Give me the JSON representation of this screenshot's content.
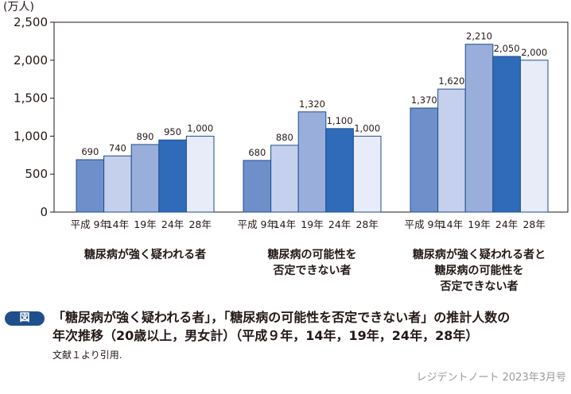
{
  "chart_data": {
    "type": "bar",
    "y_unit_label": "(万人)",
    "ylim": [
      0,
      2500
    ],
    "yticks": [
      0,
      500,
      1000,
      1500,
      2000,
      2500
    ],
    "ytick_labels": [
      "0",
      "500",
      "1,000",
      "1,500",
      "2,000",
      "2,500"
    ],
    "groups": [
      {
        "name_lines": [
          "糖尿病が強く疑われる者"
        ],
        "bars": [
          {
            "x_label": "平成 9年",
            "value": 690,
            "value_label": "690"
          },
          {
            "x_label": "14年",
            "value": 740,
            "value_label": "740"
          },
          {
            "x_label": "19年",
            "value": 890,
            "value_label": "890"
          },
          {
            "x_label": "24年",
            "value": 950,
            "value_label": "950"
          },
          {
            "x_label": "28年",
            "value": 1000,
            "value_label": "1,000"
          }
        ]
      },
      {
        "name_lines": [
          "糖尿病の可能性を",
          "否定できない者"
        ],
        "bars": [
          {
            "x_label": "平成 9年",
            "value": 680,
            "value_label": "680"
          },
          {
            "x_label": "14年",
            "value": 880,
            "value_label": "880"
          },
          {
            "x_label": "19年",
            "value": 1320,
            "value_label": "1,320"
          },
          {
            "x_label": "24年",
            "value": 1100,
            "value_label": "1,100"
          },
          {
            "x_label": "28年",
            "value": 1000,
            "value_label": "1,000"
          }
        ]
      },
      {
        "name_lines": [
          "糖尿病が強く疑われる者と",
          "糖尿病の可能性を",
          "否定できない者"
        ],
        "bars": [
          {
            "x_label": "平成 9年",
            "value": 1370,
            "value_label": "1,370"
          },
          {
            "x_label": "14年",
            "value": 1620,
            "value_label": "1,620"
          },
          {
            "x_label": "19年",
            "value": 2210,
            "value_label": "2,210"
          },
          {
            "x_label": "24年",
            "value": 2050,
            "value_label": "2,050"
          },
          {
            "x_label": "28年",
            "value": 2000,
            "value_label": "2,000"
          }
        ]
      }
    ],
    "year_colors": [
      "#6f8fcb",
      "#c5d0ec",
      "#9aaedb",
      "#2f6bb8",
      "#e8ecf8"
    ],
    "bar_stroke": "#1f4e8c"
  },
  "caption": {
    "badge": "図",
    "title_lines": [
      "「糖尿病が強く疑われる者」，「糖尿病の可能性を否定できない者」の推計人数の",
      "年次推移（20歳以上，男女計）（平成９年，14年，19年，24年，28年）"
    ],
    "source": "文献１より引用."
  },
  "credit": "レジデントノート 2023年3月号"
}
